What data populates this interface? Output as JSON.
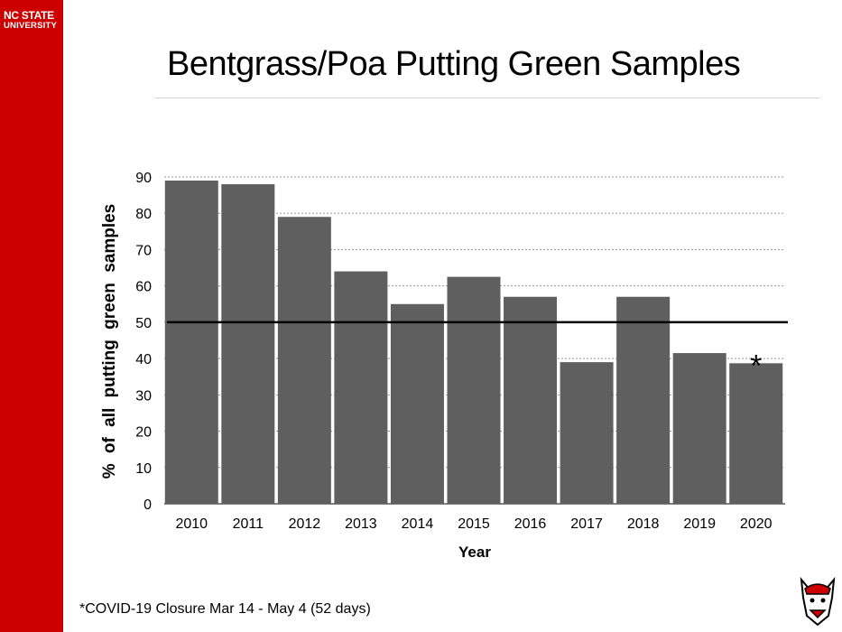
{
  "brand": {
    "logo_line1": "NC STATE",
    "logo_line2": "UNIVERSITY",
    "color": "#cc0000"
  },
  "footnote": "*COVID-19 Closure Mar 14 - May 4 (52 days)",
  "chart_data": {
    "type": "bar",
    "title": "Bentgrass/Poa Putting Green Samples",
    "xlabel": "Year",
    "ylabel": "% of all putting green samples",
    "categories": [
      "2010",
      "2011",
      "2012",
      "2013",
      "2014",
      "2015",
      "2016",
      "2017",
      "2018",
      "2019",
      "2020"
    ],
    "values": [
      89,
      88,
      79,
      64,
      55,
      62.5,
      57,
      39,
      57,
      41.5,
      38.7
    ],
    "ylim": [
      0,
      90
    ],
    "yticks": [
      0,
      10,
      20,
      30,
      40,
      50,
      60,
      70,
      80,
      90
    ],
    "grid": true,
    "reference_line": 50,
    "bar_color": "#5f5f5f",
    "annotations": [
      {
        "category": "2020",
        "text": "*"
      }
    ]
  }
}
